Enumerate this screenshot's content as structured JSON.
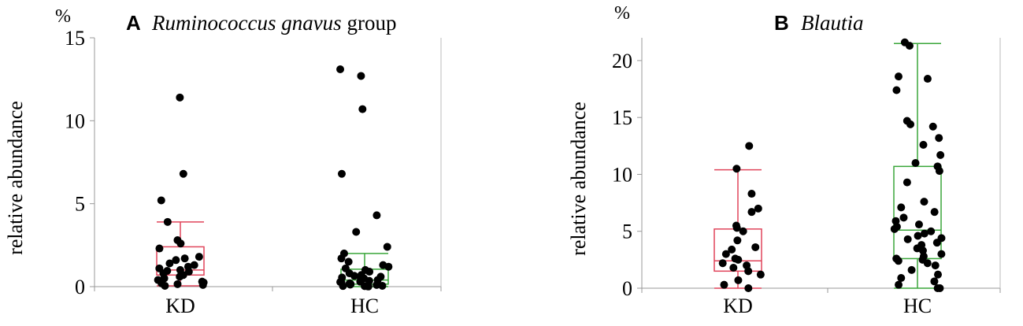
{
  "chart_data": [
    {
      "type": "box",
      "panel_letter": "A",
      "title": "Ruminococcus gnavus group",
      "title_italic_part": "Ruminococcus gnavus",
      "title_plain_part": " group",
      "ylabel": "relative abundance",
      "unit": "%",
      "ylim": [
        0,
        15
      ],
      "yticks": [
        0,
        5,
        10,
        15
      ],
      "categories": [
        "KD",
        "HC"
      ],
      "series": [
        {
          "group": "KD",
          "color": "#e0445a",
          "box": {
            "min": 0.05,
            "q1": 0.7,
            "median": 1.0,
            "q3": 2.4,
            "max": 3.9
          },
          "points": [
            11.4,
            6.8,
            5.2,
            3.9,
            2.8,
            2.6,
            2.3,
            1.8,
            1.7,
            1.6,
            1.4,
            1.3,
            1.2,
            1.1,
            1.0,
            0.95,
            0.9,
            0.8,
            0.7,
            0.6,
            0.5,
            0.4,
            0.3,
            0.25,
            0.2,
            0.15,
            0.1,
            0.05
          ]
        },
        {
          "group": "HC",
          "color": "#3aa63a",
          "box": {
            "min": 0.0,
            "q1": 0.15,
            "median": 0.4,
            "q3": 1.05,
            "max": 2.0
          },
          "points": [
            13.1,
            12.7,
            10.7,
            6.8,
            4.3,
            3.3,
            2.4,
            2.0,
            1.7,
            1.5,
            1.3,
            1.2,
            1.1,
            1.0,
            0.9,
            0.8,
            0.7,
            0.65,
            0.6,
            0.55,
            0.5,
            0.45,
            0.4,
            0.35,
            0.3,
            0.28,
            0.25,
            0.2,
            0.18,
            0.15,
            0.12,
            0.1,
            0.08,
            0.05,
            0.04,
            0.03,
            0.02,
            0.01
          ]
        }
      ]
    },
    {
      "type": "box",
      "panel_letter": "B",
      "title": "Blautia",
      "title_italic_part": "Blautia",
      "title_plain_part": "",
      "ylabel": "relative abundance",
      "unit": "%",
      "ylim": [
        0,
        22
      ],
      "yticks": [
        0,
        5,
        10,
        15,
        20
      ],
      "categories": [
        "KD",
        "HC"
      ],
      "series": [
        {
          "group": "KD",
          "color": "#e0445a",
          "box": {
            "min": 0.0,
            "q1": 1.5,
            "median": 2.4,
            "q3": 5.2,
            "max": 10.4
          },
          "points": [
            12.5,
            10.5,
            8.3,
            7.0,
            6.7,
            5.5,
            5.3,
            5.0,
            4.2,
            3.6,
            3.4,
            3.0,
            2.6,
            2.5,
            2.2,
            2.0,
            1.8,
            1.5,
            1.2,
            0.7,
            0.3,
            0.0
          ]
        },
        {
          "group": "HC",
          "color": "#3aa63a",
          "box": {
            "min": 0.0,
            "q1": 2.6,
            "median": 5.1,
            "q3": 10.7,
            "max": 21.5
          },
          "points": [
            21.6,
            21.3,
            18.6,
            18.4,
            17.4,
            14.7,
            14.4,
            14.2,
            13.2,
            12.6,
            11.7,
            11.0,
            10.7,
            10.3,
            9.3,
            7.6,
            7.1,
            6.7,
            6.2,
            5.9,
            5.6,
            5.4,
            5.2,
            5.0,
            4.8,
            4.6,
            4.4,
            4.3,
            4.0,
            3.8,
            3.5,
            3.3,
            3.0,
            2.8,
            2.6,
            2.5,
            2.4,
            2.2,
            2.0,
            1.6,
            1.2,
            0.9,
            0.6,
            0.3,
            0.0,
            0.0
          ]
        }
      ]
    }
  ]
}
